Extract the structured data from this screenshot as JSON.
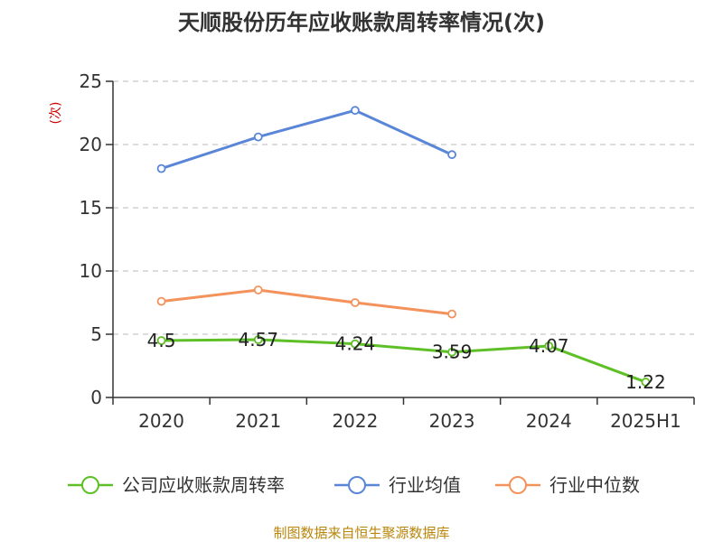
{
  "chart_data": {
    "type": "line",
    "title": "天顺股份历年应收账款周转率情况(次)",
    "ylabel": "(次)",
    "xlabel": "",
    "categories": [
      "2020",
      "2021",
      "2022",
      "2023",
      "2024",
      "2025H1"
    ],
    "y_ticks": [
      "0",
      "5",
      "10",
      "15",
      "20",
      "25"
    ],
    "ylim": [
      0,
      25
    ],
    "grid": true,
    "legend_position": "bottom",
    "series": [
      {
        "name": "公司应收账款周转率",
        "color": "#5ec026",
        "values": [
          4.5,
          4.57,
          4.24,
          3.59,
          4.07,
          1.22
        ],
        "labels": [
          "4.5",
          "4.57",
          "4.24",
          "3.59",
          "4.07",
          "1.22"
        ]
      },
      {
        "name": "行业均值",
        "color": "#5a86d8",
        "values": [
          18.1,
          20.6,
          22.7,
          19.2,
          null,
          null
        ]
      },
      {
        "name": "行业中位数",
        "color": "#f4925c",
        "values": [
          7.6,
          8.5,
          7.5,
          6.6,
          null,
          null
        ]
      }
    ],
    "source": "制图数据来自恒生聚源数据库"
  }
}
